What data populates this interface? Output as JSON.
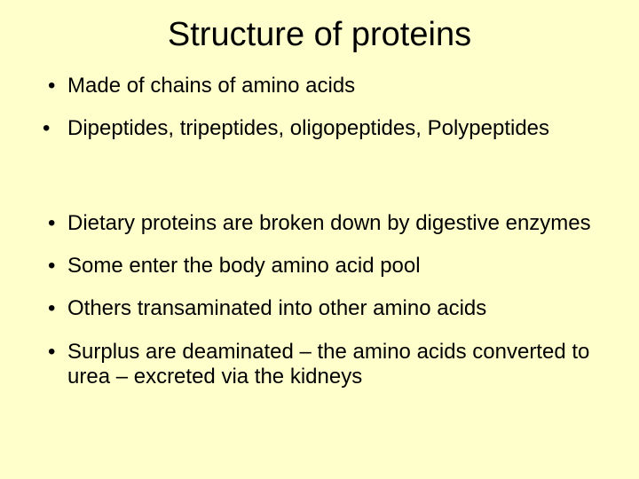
{
  "background_color": "#ffffcc",
  "text_color": "#000000",
  "title": {
    "text": "Structure of proteins",
    "fontsize": 38,
    "align": "center"
  },
  "body_fontsize": 24,
  "bullets": [
    {
      "text": "Made of chains of amino acids",
      "indent": true
    },
    {
      "text": "Dipeptides, tripeptides, oligopeptides, Polypeptides",
      "indent": false
    },
    {
      "text": "Dietary proteins are broken down by digestive enzymes",
      "indent": true
    },
    {
      "text": "Some enter the body amino acid pool",
      "indent": true
    },
    {
      "text": "Others transaminated into other amino acids",
      "indent": true
    },
    {
      "text": "Surplus are deaminated – the amino acids converted to urea – excreted via the kidneys",
      "indent": true
    }
  ],
  "bullet_glyph": "•"
}
